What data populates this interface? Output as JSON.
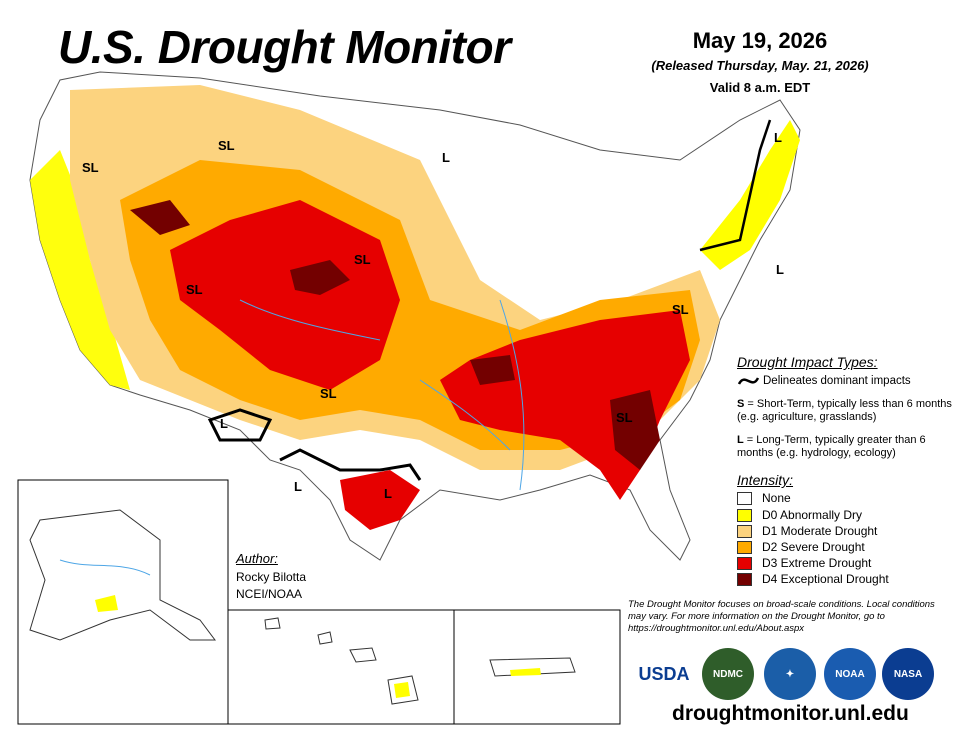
{
  "header": {
    "title": "U.S. Drought Monitor",
    "date": "May 19, 2026",
    "released": "(Released Thursday, May. 21, 2026)",
    "valid": "Valid 8 a.m. EDT"
  },
  "impact_legend": {
    "header": "Drought Impact Types:",
    "delineates": "Delineates dominant impacts",
    "short_term_key": "S",
    "short_term_text": " = Short-Term, typically less than 6 months (e.g. agriculture, grasslands)",
    "long_term_key": "L",
    "long_term_text": " = Long-Term, typically greater than 6 months (e.g. hydrology, ecology)"
  },
  "intensity_legend": {
    "header": "Intensity:",
    "items": [
      {
        "label": "None",
        "color": "#ffffff"
      },
      {
        "label": "D0 Abnormally Dry",
        "color": "#ffff00"
      },
      {
        "label": "D1 Moderate Drought",
        "color": "#fcd37f"
      },
      {
        "label": "D2 Severe Drought",
        "color": "#ffaa00"
      },
      {
        "label": "D3 Extreme Drought",
        "color": "#e60000"
      },
      {
        "label": "D4 Exceptional Drought",
        "color": "#730000"
      }
    ]
  },
  "author": {
    "header": "Author:",
    "name": "Rocky Bilotta",
    "org": "NCEI/NOAA"
  },
  "map_labels": [
    "SL",
    "SL",
    "SL",
    "SL",
    "SL",
    "SL",
    "SL",
    "L",
    "L",
    "L",
    "L",
    "L",
    "L"
  ],
  "disclaimer": "The Drought Monitor focuses on broad-scale conditions. Local conditions may vary. For more information on the Drought Monitor, go to https://droughtmonitor.unl.edu/About.aspx",
  "logos": [
    "USDA",
    "NDMC",
    "NOAA",
    "NASA"
  ],
  "url": "droughtmonitor.unl.edu"
}
